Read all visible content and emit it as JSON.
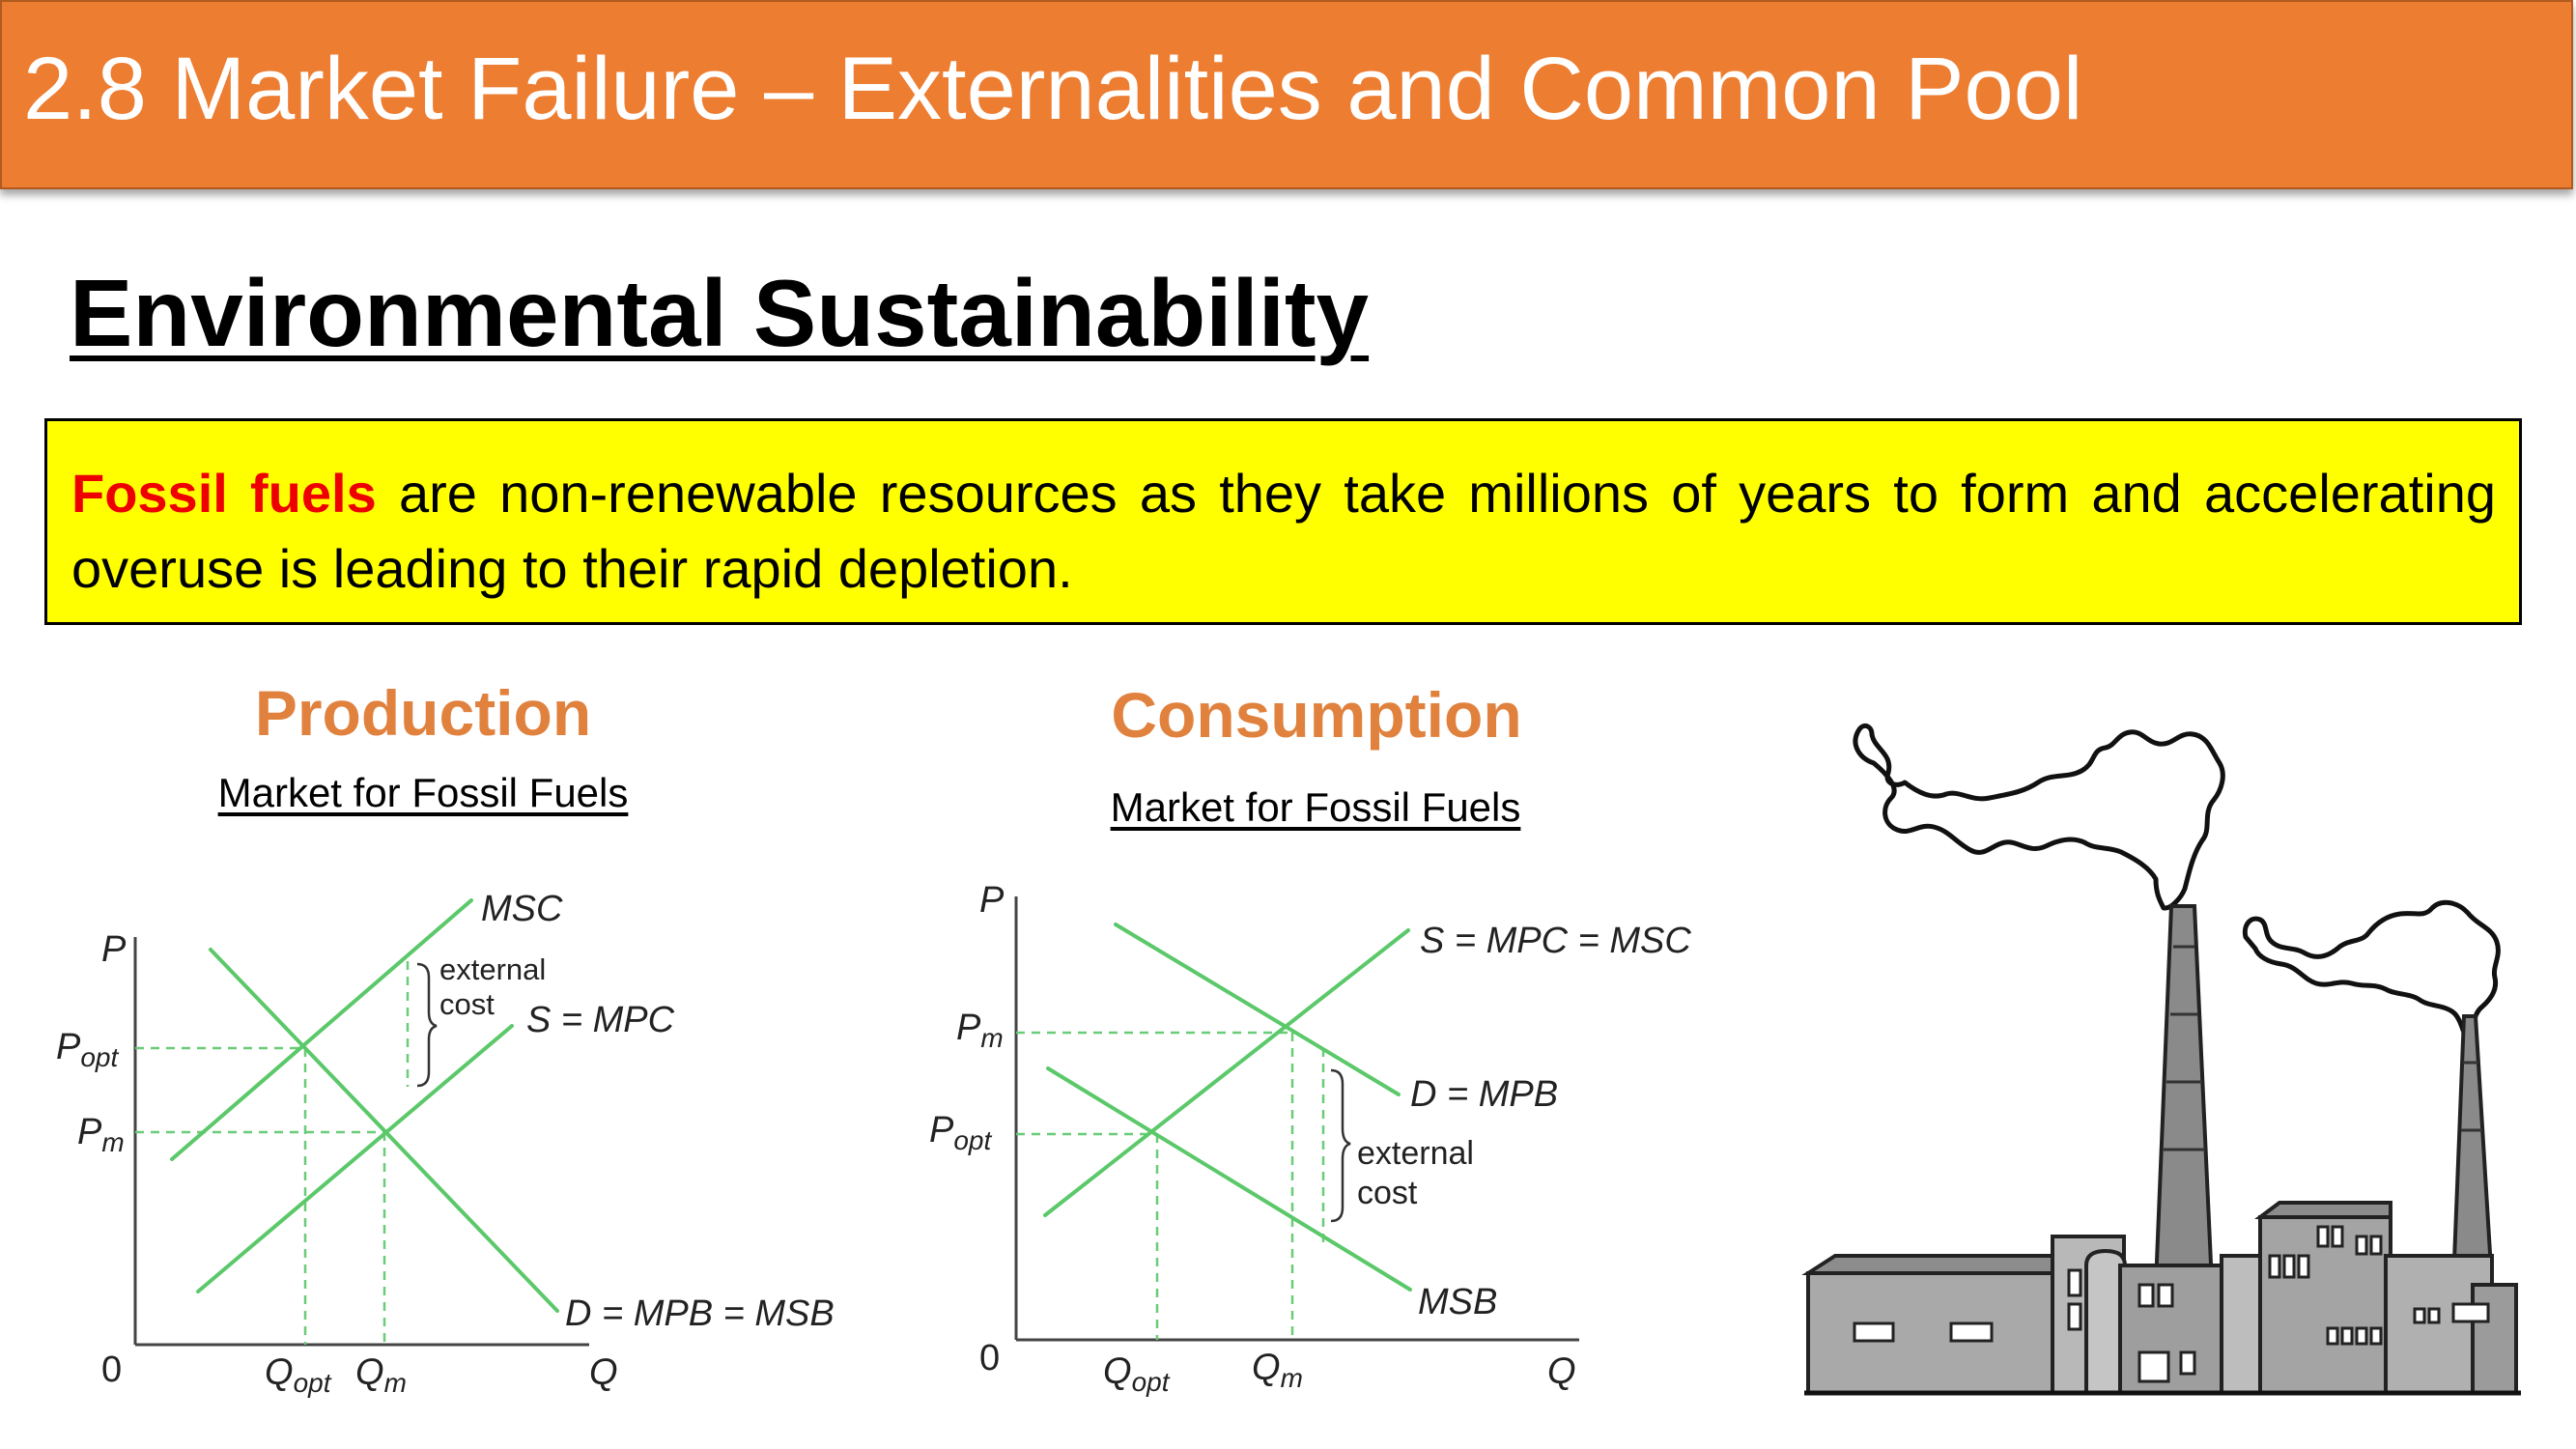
{
  "header": {
    "title": "2.8 Market Failure – Externalities and Common Pool"
  },
  "heading": "Environmental Sustainability",
  "callout": {
    "highlight": "Fossil fuels",
    "text": " are non-renewable resources as they take millions of years to form and accelerating overuse is leading to their rapid depletion."
  },
  "colors": {
    "header_bg": "#ED7D31",
    "callout_bg": "#FFFF00",
    "highlight": "#EE0000",
    "section_title": "#E0823E",
    "curve": "#5BC86A"
  },
  "production": {
    "title": "Production",
    "subtitle": "Market for Fossil Fuels",
    "axis_p": "P",
    "axis_q": "Q",
    "origin": "0",
    "p_opt_main": "P",
    "p_opt_sub": "opt",
    "p_m_main": "P",
    "p_m_sub": "m",
    "q_opt_main": "Q",
    "q_opt_sub": "opt",
    "q_m_main": "Q",
    "q_m_sub": "m",
    "msc_label": "MSC",
    "supply_label": "S = MPC",
    "demand_label": "D = MPB = MSB",
    "external_cost_1": "external",
    "external_cost_2": "cost"
  },
  "consumption": {
    "title": "Consumption",
    "subtitle": "Market for Fossil Fuels",
    "axis_p": "P",
    "axis_q": "Q",
    "origin": "0",
    "p_m_main": "P",
    "p_m_sub": "m",
    "p_opt_main": "P",
    "p_opt_sub": "opt",
    "q_opt_main": "Q",
    "q_opt_sub": "opt",
    "q_m_main": "Q",
    "q_m_sub": "m",
    "supply_label": "S = MPC = MSC",
    "demand_label": "D = MPB",
    "msb_label": "MSB",
    "external_cost_1": "external",
    "external_cost_2": "cost"
  },
  "illustration": {
    "icon": "factory-smokestacks-icon"
  }
}
